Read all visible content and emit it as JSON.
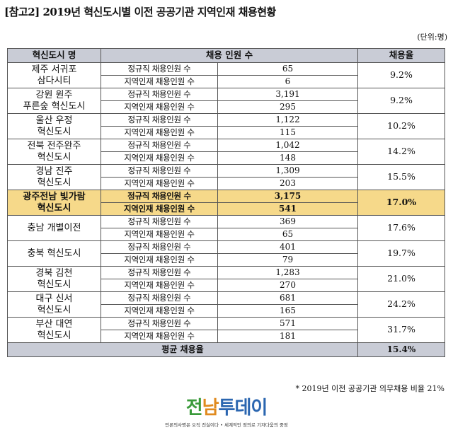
{
  "title": "[참고2] 2019년 혁신도시별 이전 공공기관 지역인재 채용현황",
  "unit": "(단위:명)",
  "headers": {
    "city": "혁신도시 명",
    "hires": "채용 인원 수",
    "rate": "채용율"
  },
  "labels": {
    "regular": "정규직 채용인원 수",
    "local": "지역인재 채용인원 수"
  },
  "rows": [
    {
      "city": "제주 서귀포\n삼다시티",
      "regular": "65",
      "local": "6",
      "rate": "9.2%"
    },
    {
      "city": "강원 원주\n푸른숲 혁신도시",
      "regular": "3,191",
      "local": "295",
      "rate": "9.2%"
    },
    {
      "city": "울산 우정\n혁신도시",
      "regular": "1,122",
      "local": "115",
      "rate": "10.2%"
    },
    {
      "city": "전북 전주완주\n혁신도시",
      "regular": "1,042",
      "local": "148",
      "rate": "14.2%"
    },
    {
      "city": "경남 진주\n혁신도시",
      "regular": "1,309",
      "local": "203",
      "rate": "15.5%"
    },
    {
      "city": "광주전남 빛가람\n혁신도시",
      "regular": "3,175",
      "local": "541",
      "rate": "17.0%",
      "highlight": true
    },
    {
      "city": "충남 개별이전",
      "regular": "369",
      "local": "65",
      "rate": "17.6%"
    },
    {
      "city": "충북 혁신도시",
      "regular": "401",
      "local": "79",
      "rate": "19.7%"
    },
    {
      "city": "경북 김천\n혁신도시",
      "regular": "1,283",
      "local": "270",
      "rate": "21.0%"
    },
    {
      "city": "대구 신서\n혁신도시",
      "regular": "681",
      "local": "165",
      "rate": "24.2%"
    },
    {
      "city": "부산 대연\n혁신도시",
      "regular": "571",
      "local": "181",
      "rate": "31.7%"
    }
  ],
  "average": {
    "label": "평균 채용율",
    "rate": "15.4%"
  },
  "footnote": "* 2019년 이전 공공기관 의무채용 비율 21%",
  "logo": {
    "part1": "전",
    "part2": "남",
    "part3": "투데이"
  },
  "slogan": "언론의사명은 오직 진실이다 • 세계적인 정의로 기자다움의 중정",
  "colors": {
    "header_bg": "#c9ccd6",
    "highlight_bg": "#f6d98a",
    "logo_green": "#3a9a3a",
    "logo_orange": "#e08a1e",
    "logo_blue": "#2b66b0"
  }
}
